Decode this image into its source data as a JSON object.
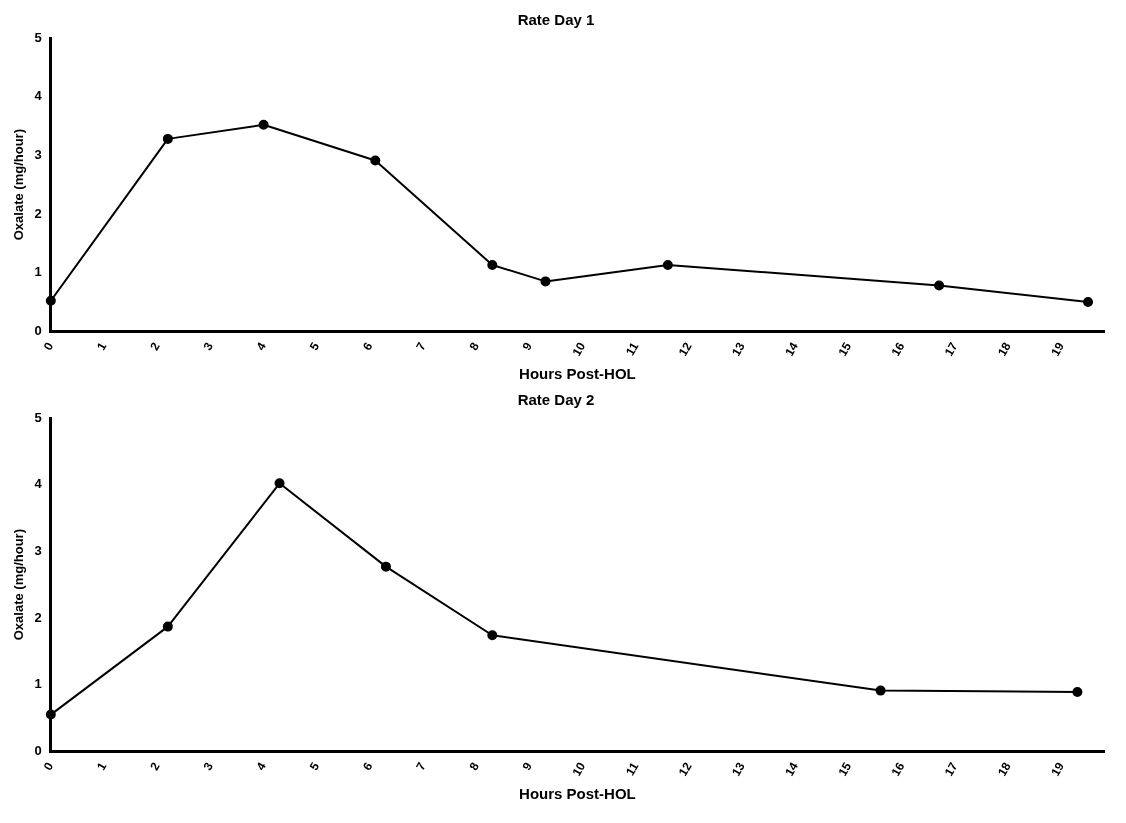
{
  "chart_data": [
    {
      "type": "line",
      "title": "Rate Day 1",
      "xlabel": "Hours Post-HOL",
      "ylabel": "Oxalate (mg/hour)",
      "x": [
        0,
        2.2,
        4.0,
        6.1,
        8.3,
        9.3,
        11.6,
        16.7,
        19.5
      ],
      "series": [
        {
          "color": "#000000",
          "values": [
            0.52,
            3.28,
            3.52,
            2.91,
            1.13,
            0.85,
            1.13,
            0.78,
            0.5
          ]
        }
      ],
      "xlim": [
        0,
        19.8
      ],
      "xticks": [
        0,
        1,
        2,
        3,
        4,
        5,
        6,
        7,
        8,
        9,
        10,
        11,
        12,
        13,
        14,
        15,
        16,
        17,
        18,
        19
      ],
      "ylim": [
        0,
        5
      ],
      "yticks": [
        0,
        1,
        2,
        3,
        4,
        5
      ],
      "grid": false,
      "legend": false,
      "marker": "circle",
      "line_style": "solid"
    },
    {
      "type": "line",
      "title": "Rate Day 2",
      "xlabel": "Hours Post-HOL",
      "ylabel": "Oxalate (mg/hour)",
      "x": [
        0,
        2.2,
        4.3,
        6.3,
        8.3,
        15.6,
        19.3
      ],
      "series": [
        {
          "color": "#000000",
          "values": [
            0.55,
            1.87,
            4.02,
            2.77,
            1.74,
            0.91,
            0.89
          ]
        }
      ],
      "xlim": [
        0,
        19.8
      ],
      "xticks": [
        0,
        1,
        2,
        3,
        4,
        5,
        6,
        7,
        8,
        9,
        10,
        11,
        12,
        13,
        14,
        15,
        16,
        17,
        18,
        19
      ],
      "ylim": [
        0,
        5
      ],
      "yticks": [
        0,
        1,
        2,
        3,
        4,
        5
      ],
      "grid": false,
      "legend": false,
      "marker": "circle",
      "line_style": "solid"
    }
  ]
}
